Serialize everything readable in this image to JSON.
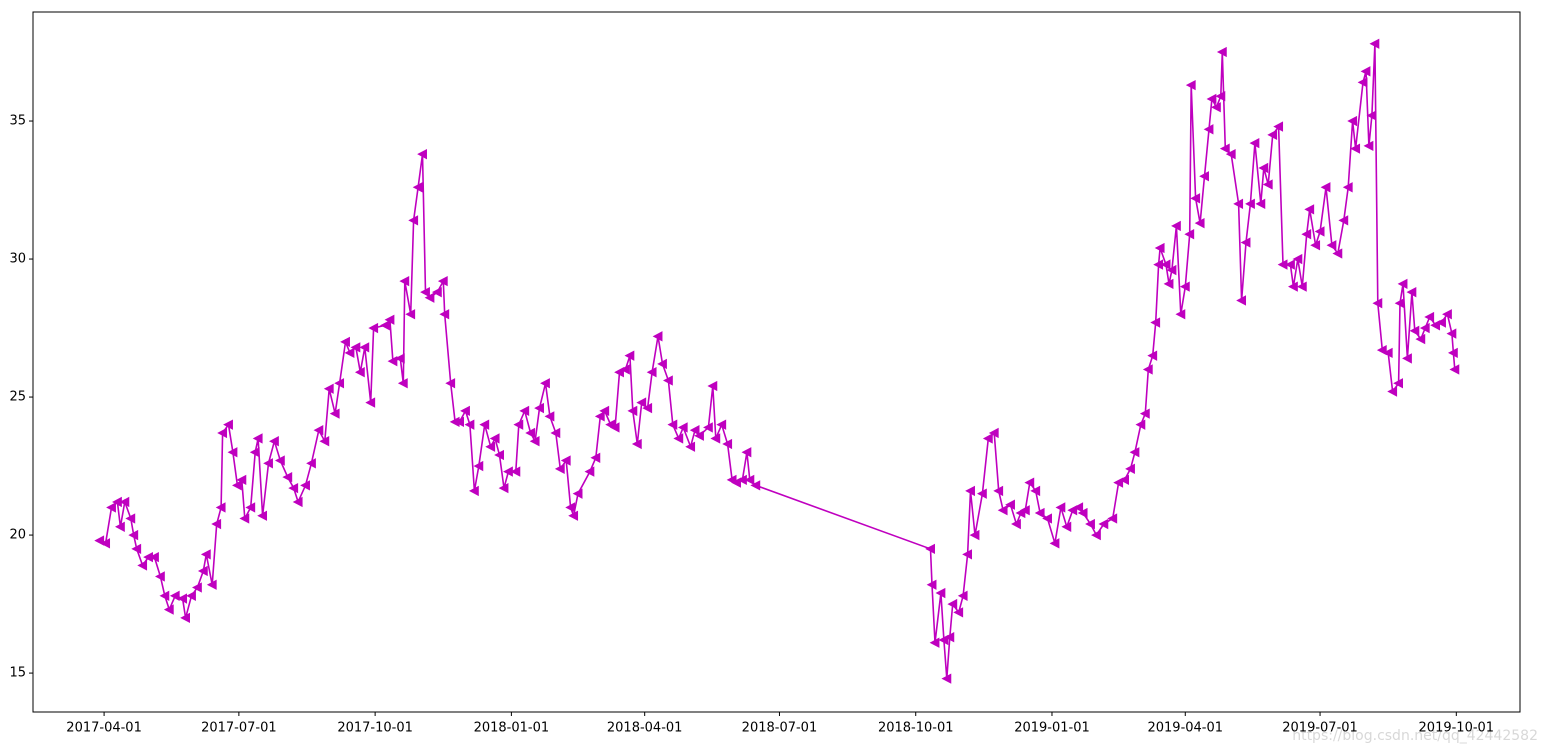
{
  "chart_data": {
    "type": "line",
    "color": "#bf00bf",
    "marker": "triangle-left",
    "watermark": "https://blog.csdn.net/qq_42442582",
    "xlim": [
      "2017-02-12",
      "2019-11-13"
    ],
    "xticks": [
      "2017-04-01",
      "2017-07-01",
      "2017-10-01",
      "2018-01-01",
      "2018-04-01",
      "2018-07-01",
      "2018-10-01",
      "2019-01-01",
      "2019-04-01",
      "2019-07-01",
      "2019-10-01"
    ],
    "ylim": [
      13.59,
      38.95
    ],
    "yticks": [
      15,
      20,
      25,
      30,
      35
    ],
    "x": [
      "2017-03-29",
      "2017-04-02",
      "2017-04-06",
      "2017-04-10",
      "2017-04-12",
      "2017-04-15",
      "2017-04-19",
      "2017-04-21",
      "2017-04-23",
      "2017-04-27",
      "2017-05-01",
      "2017-05-05",
      "2017-05-09",
      "2017-05-12",
      "2017-05-15",
      "2017-05-19",
      "2017-05-24",
      "2017-05-26",
      "2017-05-30",
      "2017-06-03",
      "2017-06-07",
      "2017-06-09",
      "2017-06-13",
      "2017-06-16",
      "2017-06-19",
      "2017-06-20",
      "2017-06-24",
      "2017-06-27",
      "2017-06-30",
      "2017-07-03",
      "2017-07-05",
      "2017-07-09",
      "2017-07-12",
      "2017-07-14",
      "2017-07-17",
      "2017-07-21",
      "2017-07-25",
      "2017-07-29",
      "2017-08-03",
      "2017-08-07",
      "2017-08-10",
      "2017-08-15",
      "2017-08-19",
      "2017-08-24",
      "2017-08-28",
      "2017-08-31",
      "2017-09-04",
      "2017-09-07",
      "2017-09-11",
      "2017-09-14",
      "2017-09-18",
      "2017-09-21",
      "2017-09-24",
      "2017-09-28",
      "2017-09-30",
      "2017-10-08",
      "2017-10-11",
      "2017-10-13",
      "2017-10-18",
      "2017-10-20",
      "2017-10-21",
      "2017-10-25",
      "2017-10-27",
      "2017-10-30",
      "2017-11-02",
      "2017-11-04",
      "2017-11-07",
      "2017-11-12",
      "2017-11-16",
      "2017-11-17",
      "2017-11-21",
      "2017-11-24",
      "2017-11-27",
      "2017-12-01",
      "2017-12-04",
      "2017-12-07",
      "2017-12-10",
      "2017-12-14",
      "2017-12-18",
      "2017-12-21",
      "2017-12-24",
      "2017-12-27",
      "2017-12-30",
      "2018-01-04",
      "2018-01-06",
      "2018-01-10",
      "2018-01-14",
      "2018-01-17",
      "2018-01-20",
      "2018-01-24",
      "2018-01-27",
      "2018-01-31",
      "2018-02-03",
      "2018-02-07",
      "2018-02-10",
      "2018-02-12",
      "2018-02-15",
      "2018-02-23",
      "2018-02-27",
      "2018-03-02",
      "2018-03-05",
      "2018-03-09",
      "2018-03-12",
      "2018-03-15",
      "2018-03-19",
      "2018-03-22",
      "2018-03-24",
      "2018-03-27",
      "2018-03-30",
      "2018-04-03",
      "2018-04-06",
      "2018-04-10",
      "2018-04-13",
      "2018-04-17",
      "2018-04-20",
      "2018-04-24",
      "2018-04-27",
      "2018-05-02",
      "2018-05-05",
      "2018-05-08",
      "2018-05-14",
      "2018-05-17",
      "2018-05-19",
      "2018-05-23",
      "2018-05-27",
      "2018-05-30",
      "2018-06-02",
      "2018-06-06",
      "2018-06-09",
      "2018-06-11",
      "2018-06-15",
      "2018-10-11",
      "2018-10-12",
      "2018-10-14",
      "2018-10-18",
      "2018-10-20",
      "2018-10-22",
      "2018-10-24",
      "2018-10-26",
      "2018-10-30",
      "2018-11-02",
      "2018-11-05",
      "2018-11-07",
      "2018-11-10",
      "2018-11-15",
      "2018-11-19",
      "2018-11-23",
      "2018-11-26",
      "2018-11-29",
      "2018-12-04",
      "2018-12-08",
      "2018-12-11",
      "2018-12-14",
      "2018-12-17",
      "2018-12-21",
      "2018-12-24",
      "2018-12-29",
      "2019-01-03",
      "2019-01-07",
      "2019-01-11",
      "2019-01-15",
      "2019-01-19",
      "2019-01-22",
      "2019-01-27",
      "2019-01-31",
      "2019-02-05",
      "2019-02-11",
      "2019-02-15",
      "2019-02-19",
      "2019-02-23",
      "2019-02-26",
      "2019-03-02",
      "2019-03-05",
      "2019-03-07",
      "2019-03-10",
      "2019-03-12",
      "2019-03-14",
      "2019-03-15",
      "2019-03-19",
      "2019-03-21",
      "2019-03-23",
      "2019-03-26",
      "2019-03-29",
      "2019-04-01",
      "2019-04-04",
      "2019-04-05",
      "2019-04-08",
      "2019-04-11",
      "2019-04-14",
      "2019-04-17",
      "2019-04-19",
      "2019-04-22",
      "2019-04-25",
      "2019-04-26",
      "2019-04-28",
      "2019-05-02",
      "2019-05-07",
      "2019-05-09",
      "2019-05-12",
      "2019-05-15",
      "2019-05-18",
      "2019-05-22",
      "2019-05-24",
      "2019-05-27",
      "2019-05-30",
      "2019-06-03",
      "2019-06-06",
      "2019-06-11",
      "2019-06-13",
      "2019-06-16",
      "2019-06-19",
      "2019-06-22",
      "2019-06-24",
      "2019-06-28",
      "2019-07-01",
      "2019-07-05",
      "2019-07-09",
      "2019-07-13",
      "2019-07-17",
      "2019-07-20",
      "2019-07-23",
      "2019-07-25",
      "2019-07-30",
      "2019-08-01",
      "2019-08-03",
      "2019-08-05",
      "2019-08-07",
      "2019-08-09",
      "2019-08-12",
      "2019-08-16",
      "2019-08-19",
      "2019-08-23",
      "2019-08-24",
      "2019-08-26",
      "2019-08-29",
      "2019-09-01",
      "2019-09-03",
      "2019-09-07",
      "2019-09-10",
      "2019-09-13",
      "2019-09-17",
      "2019-09-21",
      "2019-09-25",
      "2019-09-28",
      "2019-09-29",
      "2019-09-30"
    ],
    "values": [
      19.8,
      19.7,
      21.0,
      21.2,
      20.3,
      21.2,
      20.6,
      20.0,
      19.5,
      18.9,
      19.2,
      19.2,
      18.5,
      17.8,
      17.3,
      17.8,
      17.7,
      17.0,
      17.8,
      18.1,
      18.7,
      19.3,
      18.2,
      20.4,
      21.0,
      23.7,
      24.0,
      23.0,
      21.8,
      22.0,
      20.6,
      21.0,
      23.0,
      23.5,
      20.7,
      22.6,
      23.4,
      22.7,
      22.1,
      21.7,
      21.2,
      21.8,
      22.6,
      23.8,
      23.4,
      25.3,
      24.4,
      25.5,
      27.0,
      26.6,
      26.8,
      25.9,
      26.8,
      24.8,
      27.5,
      27.6,
      27.8,
      26.3,
      26.4,
      25.5,
      29.2,
      28.0,
      31.4,
      32.6,
      33.8,
      28.8,
      28.6,
      28.8,
      29.2,
      28.0,
      25.5,
      24.1,
      24.1,
      24.5,
      24.0,
      21.6,
      22.5,
      24.0,
      23.2,
      23.5,
      22.9,
      21.7,
      22.3,
      22.3,
      24.0,
      24.5,
      23.7,
      23.4,
      24.6,
      25.5,
      24.3,
      23.7,
      22.4,
      22.7,
      21.0,
      20.7,
      21.5,
      22.3,
      22.8,
      24.3,
      24.5,
      24.0,
      23.9,
      25.9,
      26.0,
      26.5,
      24.5,
      23.3,
      24.8,
      24.6,
      25.9,
      27.2,
      26.2,
      25.6,
      24.0,
      23.5,
      23.9,
      23.2,
      23.8,
      23.6,
      23.9,
      25.4,
      23.5,
      24.0,
      23.3,
      22.0,
      21.9,
      22.0,
      23.0,
      22.0,
      21.8,
      19.5,
      18.2,
      16.1,
      17.9,
      16.2,
      14.8,
      16.3,
      17.5,
      17.2,
      17.8,
      19.3,
      21.6,
      20.0,
      21.5,
      23.5,
      23.7,
      21.6,
      20.9,
      21.1,
      20.4,
      20.8,
      20.9,
      21.9,
      21.6,
      20.8,
      20.6,
      19.7,
      21.0,
      20.3,
      20.9,
      21.0,
      20.8,
      20.4,
      20.0,
      20.4,
      20.6,
      21.9,
      22.0,
      22.4,
      23.0,
      24.0,
      24.4,
      26.0,
      26.5,
      27.7,
      29.8,
      30.4,
      29.8,
      29.1,
      29.6,
      31.2,
      28.0,
      29.0,
      30.9,
      36.3,
      32.2,
      31.3,
      33.0,
      34.7,
      35.8,
      35.5,
      35.9,
      37.5,
      34.0,
      33.8,
      32.0,
      28.5,
      30.6,
      32.0,
      34.2,
      32.0,
      33.3,
      32.7,
      34.5,
      34.8,
      29.8,
      29.8,
      29.0,
      30.0,
      29.0,
      30.9,
      31.8,
      30.5,
      31.0,
      32.6,
      30.5,
      30.2,
      31.4,
      32.6,
      35.0,
      34.0,
      36.4,
      36.8,
      34.1,
      35.2,
      37.8,
      28.4,
      26.7,
      26.6,
      25.2,
      25.5,
      28.4,
      29.1,
      26.4,
      28.8,
      27.4,
      27.1,
      27.5,
      27.9,
      27.6,
      27.7,
      28.0,
      27.3,
      26.6,
      26.0
    ]
  }
}
